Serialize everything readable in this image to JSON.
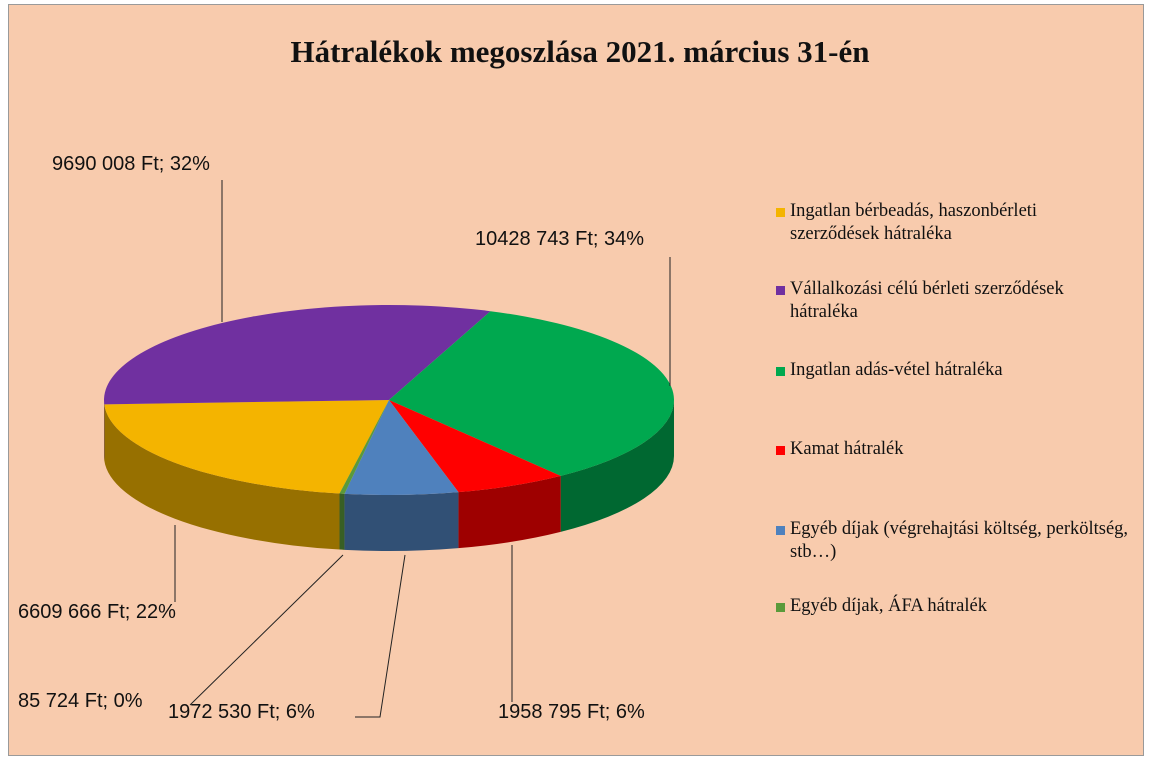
{
  "chart_data": {
    "type": "pie",
    "title": "Hátralékok megoszlása 2021. március 31-én",
    "categories": [
      "Ingatlan bérbeadás, haszonbérleti szerződések hátraléka",
      "Vállalkozási célú bérleti szerződések hátraléka",
      "Ingatlan adás-vétel hátraléka",
      "Kamat hátralék",
      "Egyéb díjak (végrehajtási költség, perköltség, stb…)",
      "Egyéb díjak, ÁFA hátralék"
    ],
    "values": [
      6609666,
      9690008,
      10428743,
      1958795,
      1972530,
      85724
    ],
    "value_labels": [
      "6609 666 Ft; 22%",
      "9690 008 Ft; 32%",
      "10428 743 Ft; 34%",
      "1958 795 Ft; 6%",
      "1972 530 Ft; 6%",
      "85 724 Ft; 0%"
    ],
    "colors": [
      "#f4b400",
      "#7030a0",
      "#00a84f",
      "#ff0000",
      "#4f81bd",
      "#5a9a3a"
    ],
    "legend": "right"
  }
}
